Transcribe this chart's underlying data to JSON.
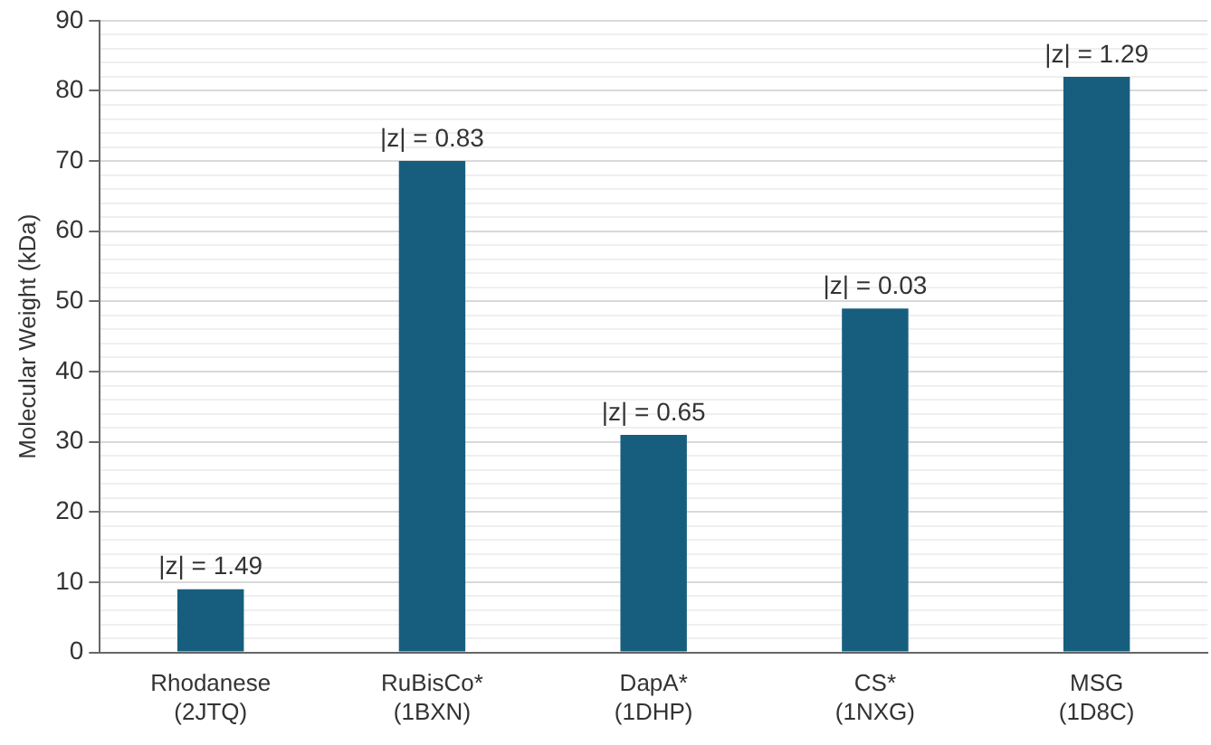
{
  "chart_data": {
    "type": "bar",
    "ylabel": "Molecular Weight (kDa)",
    "categories": [
      "Rhodanese\n(2JTQ)",
      "RuBisCo*\n(1BXN)",
      "DapA*\n(1DHP)",
      "CS*\n(1NXG)",
      "MSG\n(1D8C)"
    ],
    "values": [
      9,
      70,
      31,
      49,
      82
    ],
    "color": "#175e7e",
    "annotations": [
      {
        "text": "|z| = 1.49",
        "x": "Rhodanese\n(2JTQ)",
        "y": 9
      },
      {
        "text": "|z| = 0.83",
        "x": "RuBisCo*\n(1BXN)",
        "y": 70
      },
      {
        "text": "|z| = 0.65",
        "x": "DapA*\n(1DHP)",
        "y": 31
      },
      {
        "text": "|z| = 0.03",
        "x": "CS*\n(1NXG)",
        "y": 49
      },
      {
        "text": "|z| = 1.29",
        "x": "MSG\n(1D8C)",
        "y": 82
      }
    ],
    "ylim": [
      0,
      90
    ],
    "yticks": [
      0,
      {
        "value": 2,
        "label": null
      },
      {
        "value": 4,
        "label": null
      },
      {
        "value": 6,
        "label": null
      },
      {
        "value": 8,
        "label": null
      },
      10,
      {
        "value": 12,
        "label": null
      },
      {
        "value": 14,
        "label": null
      },
      {
        "value": 16,
        "label": null
      },
      {
        "value": 18,
        "label": null
      },
      20,
      {
        "value": 22,
        "label": null
      },
      {
        "value": 24,
        "label": null
      },
      {
        "value": 26,
        "label": null
      },
      {
        "value": 28,
        "label": null
      },
      30,
      {
        "value": 32,
        "label": null
      },
      {
        "value": 34,
        "label": null
      },
      {
        "value": 36,
        "label": null
      },
      {
        "value": 38,
        "label": null
      },
      40,
      {
        "value": 42,
        "label": null
      },
      {
        "value": 44,
        "label": null
      },
      {
        "value": 46,
        "label": null
      },
      {
        "value": 48,
        "label": null
      },
      50,
      {
        "value": 52,
        "label": null
      },
      {
        "value": 54,
        "label": null
      },
      {
        "value": 56,
        "label": null
      },
      {
        "value": 58,
        "label": null
      },
      60,
      {
        "value": 62,
        "label": null
      },
      {
        "value": 64,
        "label": null
      },
      {
        "value": 66,
        "label": null
      },
      {
        "value": 68,
        "label": null
      },
      70,
      {
        "value": 72,
        "label": null
      },
      {
        "value": 74,
        "label": null
      },
      {
        "value": 76,
        "label": null
      },
      {
        "value": 78,
        "label": null
      },
      80,
      {
        "value": 82,
        "label": null
      },
      {
        "value": 84,
        "label": null
      },
      {
        "value": 86,
        "label": null
      },
      {
        "value": 88,
        "label": null
      },
      90
    ],
    "grid": "y",
    "legend": false
  }
}
